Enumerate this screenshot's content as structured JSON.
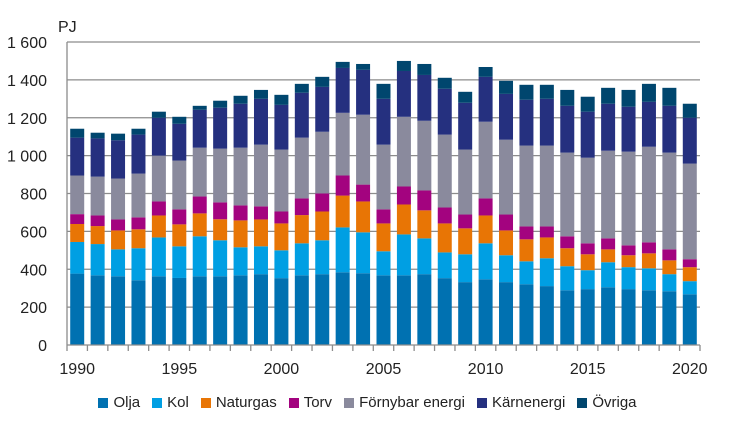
{
  "chart_data": {
    "type": "bar",
    "stacked": true,
    "ylabel": "PJ",
    "ylim": [
      0,
      1600
    ],
    "yticks": [
      "0",
      "200",
      "400",
      "600",
      "800",
      "1 000",
      "1 200",
      "1 400",
      "1 600"
    ],
    "xtick_labels": [
      "1990",
      "1995",
      "2000",
      "2005",
      "2010",
      "2015",
      "2020"
    ],
    "grid": true,
    "legend_position": "bottom",
    "categories": [
      1990,
      1991,
      1992,
      1993,
      1994,
      1995,
      1996,
      1997,
      1998,
      1999,
      2000,
      2001,
      2002,
      2003,
      2004,
      2005,
      2006,
      2007,
      2008,
      2009,
      2010,
      2011,
      2012,
      2013,
      2014,
      2015,
      2016,
      2017,
      2018,
      2019,
      2020
    ],
    "series": [
      {
        "name": "Olja",
        "color": "#0071b1",
        "values": [
          377,
          368,
          363,
          342,
          363,
          354,
          363,
          363,
          368,
          374,
          353,
          368,
          374,
          384,
          379,
          368,
          368,
          374,
          353,
          332,
          347,
          332,
          321,
          311,
          289,
          295,
          305,
          295,
          289,
          284,
          268
        ]
      },
      {
        "name": "Kol",
        "color": "#009fe3",
        "values": [
          167,
          165,
          142,
          169,
          205,
          167,
          211,
          190,
          148,
          147,
          147,
          169,
          179,
          237,
          216,
          127,
          216,
          189,
          136,
          147,
          190,
          142,
          121,
          147,
          127,
          100,
          132,
          116,
          116,
          90,
          69
        ]
      },
      {
        "name": "Naturgas",
        "color": "#e87505",
        "values": [
          95,
          95,
          100,
          100,
          116,
          116,
          121,
          111,
          142,
          142,
          142,
          149,
          152,
          168,
          163,
          147,
          158,
          148,
          153,
          137,
          147,
          131,
          116,
          110,
          95,
          84,
          68,
          63,
          79,
          73,
          74
        ]
      },
      {
        "name": "Torv",
        "color": "#a3037f",
        "values": [
          52,
          56,
          58,
          63,
          74,
          79,
          89,
          89,
          79,
          69,
          63,
          88,
          95,
          106,
          89,
          74,
          95,
          105,
          84,
          73,
          90,
          84,
          68,
          58,
          63,
          58,
          58,
          52,
          58,
          58,
          42
        ]
      },
      {
        "name": "Förnybar energi",
        "color": "#8a8a9d",
        "values": [
          204,
          205,
          216,
          231,
          242,
          258,
          258,
          284,
          305,
          326,
          327,
          321,
          326,
          331,
          369,
          342,
          368,
          368,
          385,
          343,
          405,
          395,
          427,
          427,
          442,
          452,
          463,
          495,
          505,
          511,
          505
        ]
      },
      {
        "name": "Kärnenergi",
        "color": "#25307f",
        "values": [
          200,
          202,
          202,
          206,
          200,
          194,
          200,
          216,
          232,
          242,
          236,
          237,
          237,
          237,
          237,
          242,
          242,
          242,
          242,
          247,
          237,
          242,
          242,
          247,
          247,
          243,
          248,
          237,
          237,
          247,
          242
        ]
      },
      {
        "name": "Övriga",
        "color": "#00466e",
        "values": [
          47,
          30,
          35,
          31,
          32,
          37,
          21,
          37,
          42,
          47,
          53,
          47,
          53,
          32,
          31,
          79,
          53,
          58,
          58,
          58,
          52,
          69,
          79,
          74,
          84,
          79,
          84,
          89,
          95,
          95,
          74
        ]
      }
    ]
  }
}
